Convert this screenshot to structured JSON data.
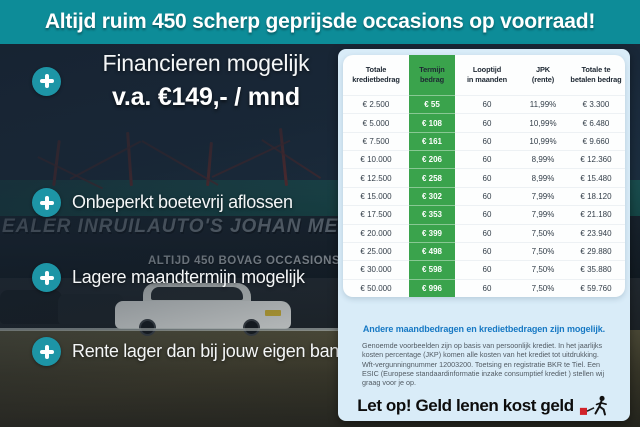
{
  "banner": {
    "text": "Altijd ruim 450 scherp geprijsde occasions op voorraad!"
  },
  "features": [
    {
      "title": "Financieren mogelijk",
      "subtitle": "v.a. €149,- / mnd"
    },
    {
      "title": "Onbeperkt boetevrij aflossen"
    },
    {
      "title": "Lagere maandtermijn mogelijk"
    },
    {
      "title": "Rente lager dan bij jouw eigen bank"
    }
  ],
  "photo": {
    "sign_main": "EALER INRUILAUTO'S JOHAN MEURE",
    "sign_sub": "ALTIJD 450 BOVAG OCCASIONS"
  },
  "table": {
    "headers": [
      [
        "Totale",
        "kredietbedrag"
      ],
      [
        "Termijn",
        "bedrag"
      ],
      [
        "Looptijd",
        "in maanden"
      ],
      [
        "JPK",
        "(rente)"
      ],
      [
        "Totale te",
        "betalen bedrag"
      ]
    ],
    "rows": [
      [
        "€ 2.500",
        "€ 55",
        "60",
        "11,99%",
        "€ 3.300"
      ],
      [
        "€ 5.000",
        "€ 108",
        "60",
        "10,99%",
        "€ 6.480"
      ],
      [
        "€ 7.500",
        "€ 161",
        "60",
        "10,99%",
        "€ 9.660"
      ],
      [
        "€ 10.000",
        "€ 206",
        "60",
        "8,99%",
        "€ 12.360"
      ],
      [
        "€ 12.500",
        "€ 258",
        "60",
        "8,99%",
        "€ 15.480"
      ],
      [
        "€ 15.000",
        "€ 302",
        "60",
        "7,99%",
        "€ 18.120"
      ],
      [
        "€ 17.500",
        "€ 353",
        "60",
        "7,99%",
        "€ 21.180"
      ],
      [
        "€ 20.000",
        "€ 399",
        "60",
        "7,50%",
        "€ 23.940"
      ],
      [
        "€ 25.000",
        "€ 498",
        "60",
        "7,50%",
        "€ 29.880"
      ],
      [
        "€ 30.000",
        "€ 598",
        "60",
        "7,50%",
        "€ 35.880"
      ],
      [
        "€ 50.000",
        "€ 996",
        "60",
        "7,50%",
        "€ 59.760"
      ]
    ]
  },
  "disclaimer": {
    "highlight": "Andere maandbedragen en kredietbedragen zijn mogelijk.",
    "body": "Genoemde voorbeelden zijn op basis van persoonlijk krediet. In het jaarlijks kosten percentage (JKP) komen alle kosten van het krediet tot uitdrukking. Wft-vergunningnummer 12003200. Toetsing en registratie BKR te Tiel. Een ESIC (Europese standaardinformatie inzake consumptief krediet ) stellen wij graag voor je op.",
    "warning": "Let op! Geld lenen kost geld"
  },
  "colors": {
    "banner_teal": "#0d8c98",
    "plus_teal": "#1d95a6",
    "green": "#3aa34c",
    "card_blue": "#d9ecf8",
    "link_blue": "#1779c4",
    "warning_red": "#d1232a"
  }
}
